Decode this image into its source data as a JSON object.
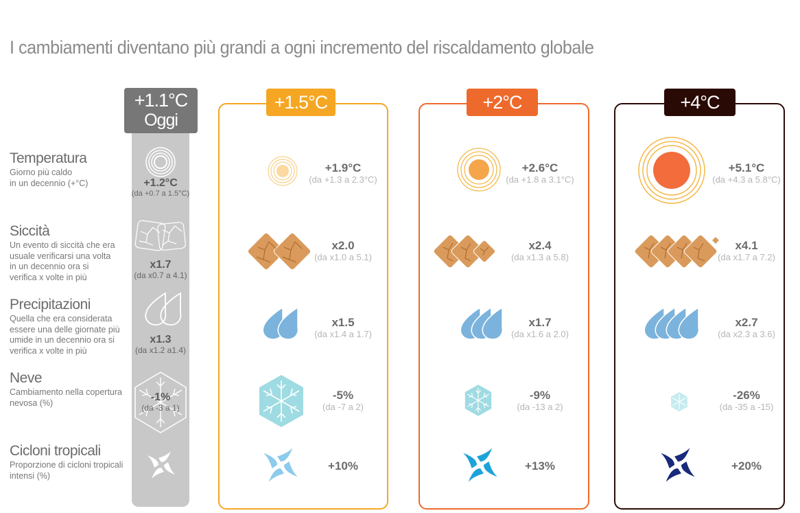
{
  "title": "I cambiamenti diventano più grandi a ogni incremento del riscaldamento globale",
  "columns": {
    "today": {
      "line1": "+1.1°C",
      "line2": "Oggi",
      "color": "#777777"
    },
    "s15": {
      "label": "+1.5°C",
      "color": "#f5a623"
    },
    "s2": {
      "label": "+2°C",
      "color": "#ee6a2c"
    },
    "s4": {
      "label": "+4°C",
      "color": "#2a0a05"
    }
  },
  "rows": {
    "temperature": {
      "heading": "Temperatura",
      "desc": [
        "Giorno più caldo",
        "in un decennio (+°C)"
      ],
      "icon": "sun-icon"
    },
    "drought": {
      "heading": "Siccità",
      "desc": [
        "Un evento di siccità che era",
        "usuale verificarsi una volta",
        "in un decennio ora si",
        "verifica x volte in più"
      ],
      "icon": "cracked-earth-icon"
    },
    "precip": {
      "heading": "Precipitazioni",
      "desc": [
        "Quella che era considerata",
        "essere una delle giornate più",
        "umide in un decennio ora si",
        "verifica x volte in più"
      ],
      "icon": "raindrop-icon"
    },
    "snow": {
      "heading": "Neve",
      "desc": [
        "Cambiamento nella copertura",
        "nevosa (%)"
      ],
      "icon": "snowflake-icon"
    },
    "cyclones": {
      "heading": "Cicloni tropicali",
      "desc": [
        "Proporzione di cicloni tropicali",
        "intensi (%)"
      ],
      "icon": "cyclone-icon"
    }
  },
  "values": {
    "today": {
      "temperature": {
        "main": "+1.2°C",
        "range": "(da +0.7 a 1.5°C)"
      },
      "drought": {
        "main": "x1.7",
        "range": "(da x0.7 a 4.1)"
      },
      "precip": {
        "main": "x1.3",
        "range": "(da x1.2 a1.4)"
      },
      "snow": {
        "main": "-1%",
        "range": "(da -3 a 1)"
      }
    },
    "s15": {
      "temperature": {
        "main": "+1.9°C",
        "range": "(da +1.3 a 2.3°C)"
      },
      "drought": {
        "main": "x2.0",
        "range": "(da x1.0 a 5.1)"
      },
      "precip": {
        "main": "x1.5",
        "range": "(da x1.4 a 1.7)"
      },
      "snow": {
        "main": "-5%",
        "range": "(da -7 a 2)"
      },
      "cyclones": {
        "main": "+10%"
      }
    },
    "s2": {
      "temperature": {
        "main": "+2.6°C",
        "range": "(da +1.8 a 3.1°C)"
      },
      "drought": {
        "main": "x2.4",
        "range": "(da x1.3 a 5.8)"
      },
      "precip": {
        "main": "x1.7",
        "range": "(da x1.6 a 2.0)"
      },
      "snow": {
        "main": "-9%",
        "range": "(da -13 a 2)"
      },
      "cyclones": {
        "main": "+13%"
      }
    },
    "s4": {
      "temperature": {
        "main": "+5.1°C",
        "range": "(da +4.3 a 5.8°C)"
      },
      "drought": {
        "main": "x4.1",
        "range": "(da x1.7 a 7.2)"
      },
      "precip": {
        "main": "x2.7",
        "range": "(da x2.3 a 3.6)"
      },
      "snow": {
        "main": "-26%",
        "range": "(da -35 a -15)"
      },
      "cyclones": {
        "main": "+20%"
      }
    }
  },
  "colors": {
    "drought_fill": "#d99a5b",
    "drop_fill": "#7bb3dc",
    "snow_fill": "#9fdbe2",
    "sun_stroke": "#f5b84a",
    "sun_core_2": "#f5a64a",
    "sun_core_4": "#f26c3c",
    "cyclone_15": "#8ccbec",
    "cyclone_2": "#1ea3d9",
    "cyclone_4": "#1a2a7a"
  }
}
